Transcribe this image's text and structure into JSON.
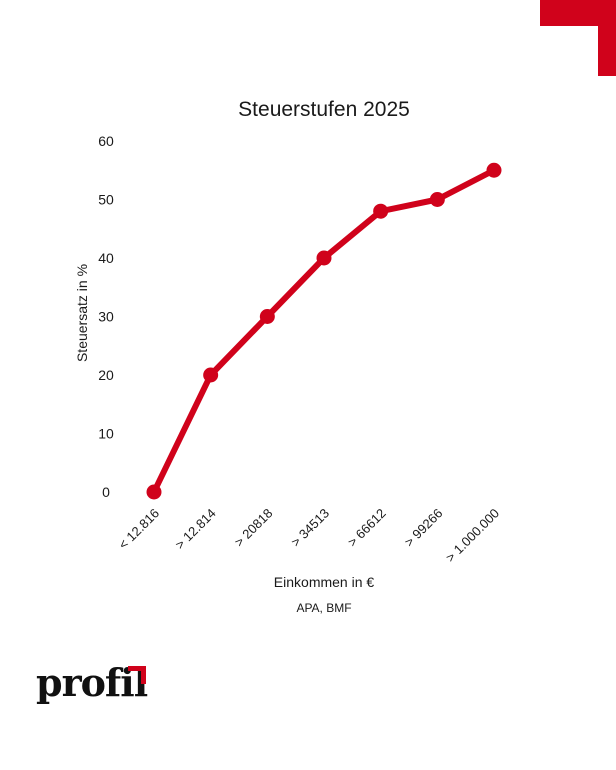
{
  "brand": {
    "logo_text": "profil",
    "accent_color": "#d0021b"
  },
  "chart_data": {
    "type": "line",
    "title": "Steuerstufen 2025",
    "xlabel": "Einkommen in €",
    "ylabel": "Steuersatz in %",
    "source": "APA, BMF",
    "categories": [
      "< 12.816",
      "> 12.814",
      "> 20818",
      "> 34513",
      "> 66612",
      "> 99266",
      "> 1.000.000"
    ],
    "series": [
      {
        "values": [
          0,
          20,
          30,
          40,
          48,
          50,
          55
        ]
      }
    ],
    "ylim": [
      0,
      60
    ],
    "yticks": [
      0,
      10,
      20,
      30,
      40,
      50,
      60
    ],
    "grid": false,
    "line_color": "#d0021b"
  }
}
